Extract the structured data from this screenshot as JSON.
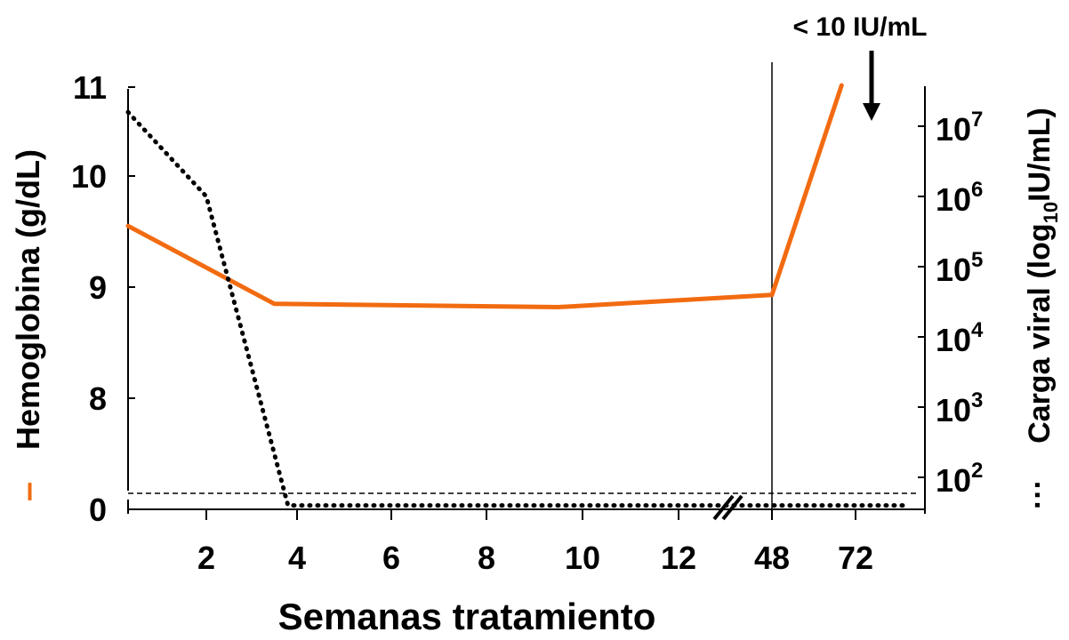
{
  "chart_data": {
    "type": "line",
    "xlabel": "Semanas tratamiento",
    "x_ticks": [
      "2",
      "4",
      "6",
      "8",
      "10",
      "12",
      "48",
      "72"
    ],
    "y_left": {
      "label": "Hemoglobina (g/dL)",
      "ticks": [
        "0",
        "8",
        "9",
        "10",
        "11"
      ],
      "tick_values": [
        7.0,
        8,
        9,
        10,
        11
      ],
      "broken_axis": true
    },
    "y_right": {
      "label_main": "Carga viral  (log",
      "label_sub": "10",
      "label_end": "IU/mL)",
      "scale": "log",
      "tick_bases": [
        "10",
        "10",
        "10",
        "10",
        "10",
        "10"
      ],
      "tick_exps": [
        "2",
        "3",
        "4",
        "5",
        "6",
        "7"
      ],
      "tick_values": [
        2,
        3,
        4,
        5,
        6,
        7
      ]
    },
    "series": [
      {
        "axis": "left",
        "style": "solid",
        "color": "#f26b11",
        "x_week": [
          0,
          3.5,
          9.5,
          48,
          68
        ],
        "values": [
          9.55,
          8.85,
          8.82,
          8.93,
          11.02
        ]
      },
      {
        "axis": "right",
        "style": "dotted",
        "color": "#000000",
        "x_week": [
          0,
          2,
          3.8,
          13,
          76
        ],
        "values": [
          7.2,
          6.0,
          1.6,
          1.6,
          1.6
        ]
      }
    ],
    "annotation": {
      "text": "< 10 IU/mL",
      "at_week": 72
    },
    "reference_lines": {
      "vertical_at_week": 48,
      "horizontal_detection_limit": true
    },
    "axis_break_marker": "//",
    "legend_markers": {
      "left": "–",
      "right": "···"
    }
  }
}
